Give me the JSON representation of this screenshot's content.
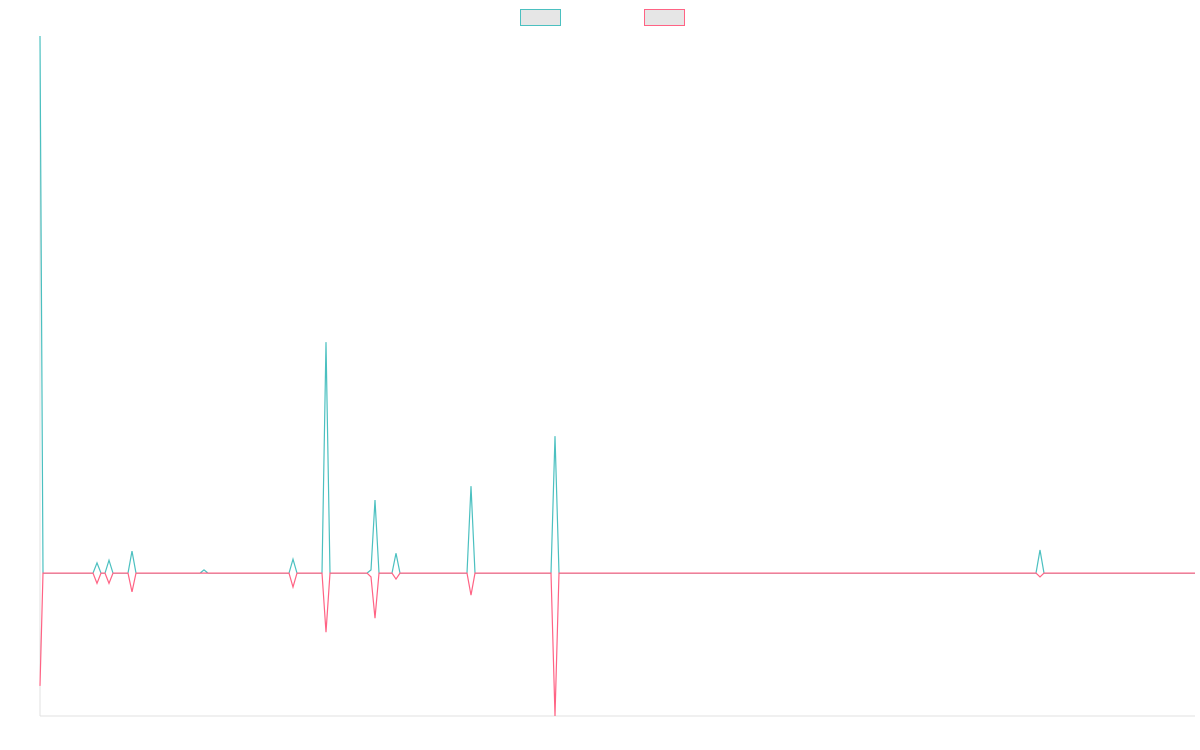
{
  "chart_data": {
    "type": "line",
    "legend": "top",
    "xlim": [
      0,
      1155
    ],
    "ylim": [
      -26.6,
      100
    ],
    "x": [
      0,
      3,
      53,
      57,
      61,
      65,
      69,
      73,
      88,
      92,
      96,
      160,
      164,
      168,
      249,
      253,
      257,
      282,
      286,
      290,
      327,
      331,
      335,
      339,
      352,
      356,
      360,
      427,
      431,
      435,
      511,
      515,
      519,
      996,
      1000,
      1004,
      1155
    ],
    "series": [
      {
        "color": "#4bc0c0",
        "values": [
          100,
          0,
          0,
          1.9,
          0,
          0,
          2.4,
          0,
          0,
          4.1,
          0,
          0,
          0.6,
          0,
          0,
          2.6,
          0,
          0,
          43,
          0,
          0,
          0.6,
          13.6,
          0,
          0,
          3.7,
          0,
          0,
          16.2,
          0,
          0,
          25.5,
          0,
          0,
          4.3,
          0,
          0
        ]
      },
      {
        "color": "#ff6384",
        "values": [
          -21,
          0,
          0,
          -1.9,
          0,
          0,
          -1.9,
          0,
          0,
          -3.5,
          0,
          0,
          0,
          0,
          0,
          -2.6,
          0,
          0,
          -11,
          0,
          0,
          -0.7,
          -8.4,
          0,
          0,
          -1.1,
          0,
          0,
          -4.1,
          0,
          0,
          -26.6,
          0,
          0,
          -0.7,
          0,
          0
        ]
      }
    ]
  }
}
